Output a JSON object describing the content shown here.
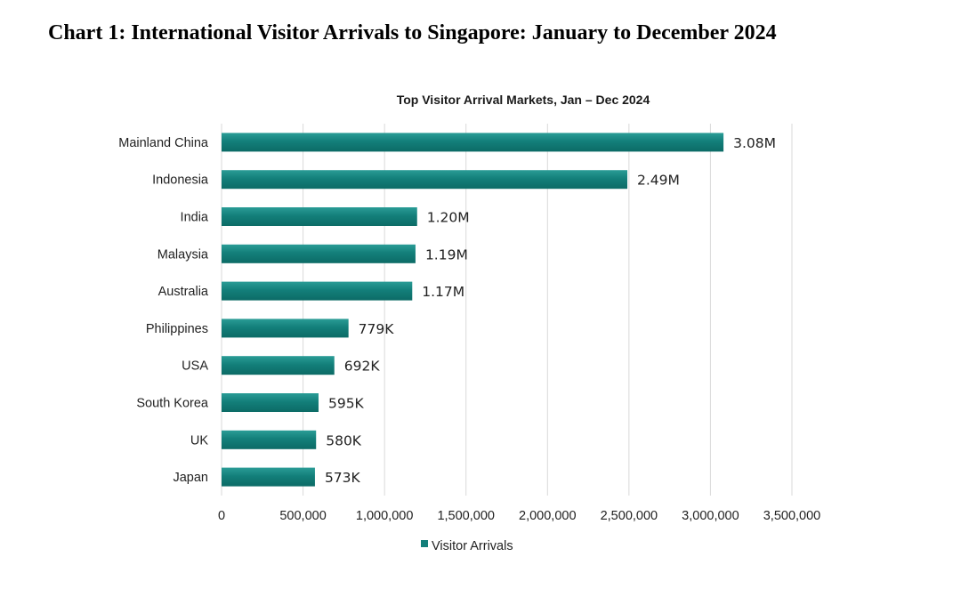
{
  "page": {
    "heading": "Chart 1: International Visitor Arrivals to Singapore: January to December 2024"
  },
  "chart_data": {
    "type": "bar",
    "orientation": "horizontal",
    "title": "Top Visitor Arrival Markets, Jan – Dec 2024",
    "xlabel": "",
    "ylabel": "",
    "categories": [
      "Mainland China",
      "Indonesia",
      "India",
      "Malaysia",
      "Australia",
      "Philippines",
      "USA",
      "South Korea",
      "UK",
      "Japan"
    ],
    "series": [
      {
        "name": "Visitor Arrivals",
        "values": [
          3080000,
          2490000,
          1200000,
          1190000,
          1170000,
          779000,
          692000,
          595000,
          580000,
          573000
        ],
        "data_labels": [
          "3.08M",
          "2.49M",
          "1.20M",
          "1.19M",
          "1.17M",
          "779K",
          "692K",
          "595K",
          "580K",
          "573K"
        ],
        "color": "#137f7a"
      }
    ],
    "xlim": [
      0,
      3500000
    ],
    "x_ticks": [
      0,
      500000,
      1000000,
      1500000,
      2000000,
      2500000,
      3000000,
      3500000
    ],
    "x_tick_labels": [
      "0",
      "500,000",
      "1,000,000",
      "1,500,000",
      "2,000,000",
      "2,500,000",
      "3,000,000",
      "3,500,000"
    ],
    "grid": "vertical",
    "legend": "bottom"
  }
}
